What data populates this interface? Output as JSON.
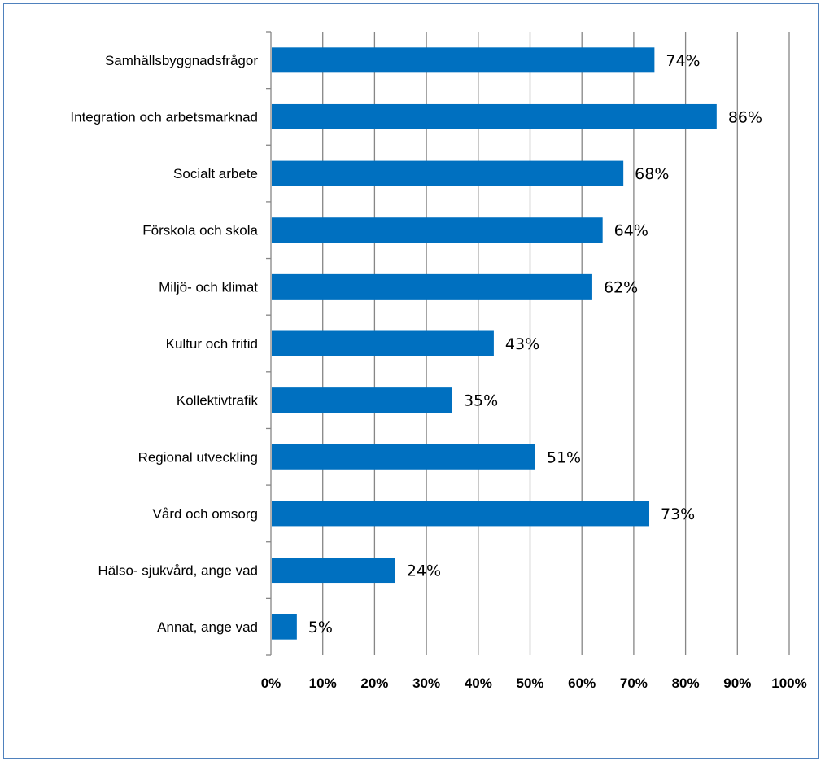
{
  "chart_data": {
    "type": "bar",
    "orientation": "horizontal",
    "categories": [
      "Samhällsbyggnadsfrågor",
      "Integration och arbetsmarknad",
      "Socialt arbete",
      "Förskola och skola",
      "Miljö- och klimat",
      "Kultur och fritid",
      "Kollektivtrafik",
      "Regional utveckling",
      "Vård och omsorg",
      "Hälso- sjukvård, ange vad",
      "Annat, ange vad"
    ],
    "values": [
      74,
      86,
      68,
      64,
      62,
      43,
      35,
      51,
      73,
      24,
      5
    ],
    "value_labels": [
      "74%",
      "86%",
      "68%",
      "64%",
      "62%",
      "43%",
      "35%",
      "51%",
      "73%",
      "24%",
      "5%"
    ],
    "xlim": [
      0,
      100
    ],
    "xticks": [
      0,
      10,
      20,
      30,
      40,
      50,
      60,
      70,
      80,
      90,
      100
    ],
    "xtick_labels": [
      "0%",
      "10%",
      "20%",
      "30%",
      "40%",
      "50%",
      "60%",
      "70%",
      "80%",
      "90%",
      "100%"
    ],
    "grid": true,
    "legend": "none",
    "bar_color": "#0070c0",
    "grid_color": "#868686",
    "border_color": "#4f81bd"
  }
}
